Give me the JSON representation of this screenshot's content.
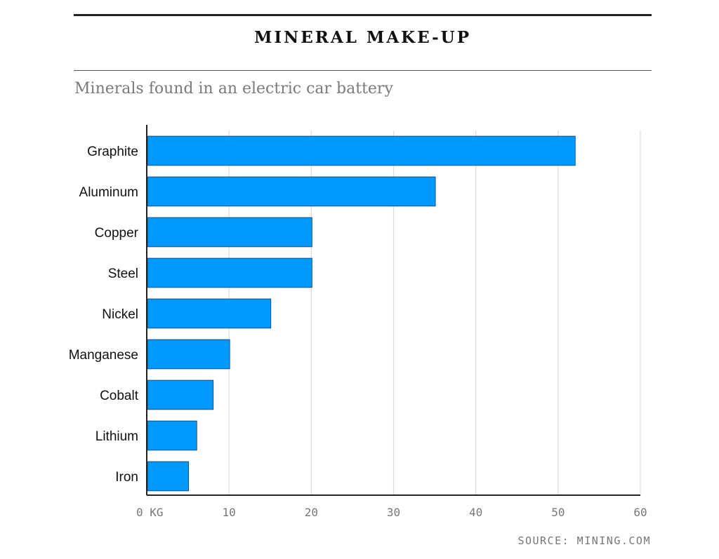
{
  "title": "MINERAL MAKE-UP",
  "subtitle": "Minerals found in an electric car battery",
  "source": "SOURCE: MINING.COM",
  "colors": {
    "bar_fill": "#0099ff",
    "bar_stroke": "#1a3a5a",
    "grid": "#dddddd",
    "axis": "#222222"
  },
  "chart_data": {
    "type": "bar",
    "orientation": "horizontal",
    "categories": [
      "Graphite",
      "Aluminum",
      "Copper",
      "Steel",
      "Nickel",
      "Manganese",
      "Cobalt",
      "Lithium",
      "Iron"
    ],
    "values": [
      52,
      35,
      20,
      20,
      15,
      10,
      8,
      6,
      5
    ],
    "xlim": [
      0,
      60
    ],
    "xticks": [
      0,
      10,
      20,
      30,
      40,
      50,
      60
    ],
    "xtick_labels": [
      "0 KG",
      "10",
      "20",
      "30",
      "40",
      "50",
      "60"
    ],
    "grid": true
  }
}
